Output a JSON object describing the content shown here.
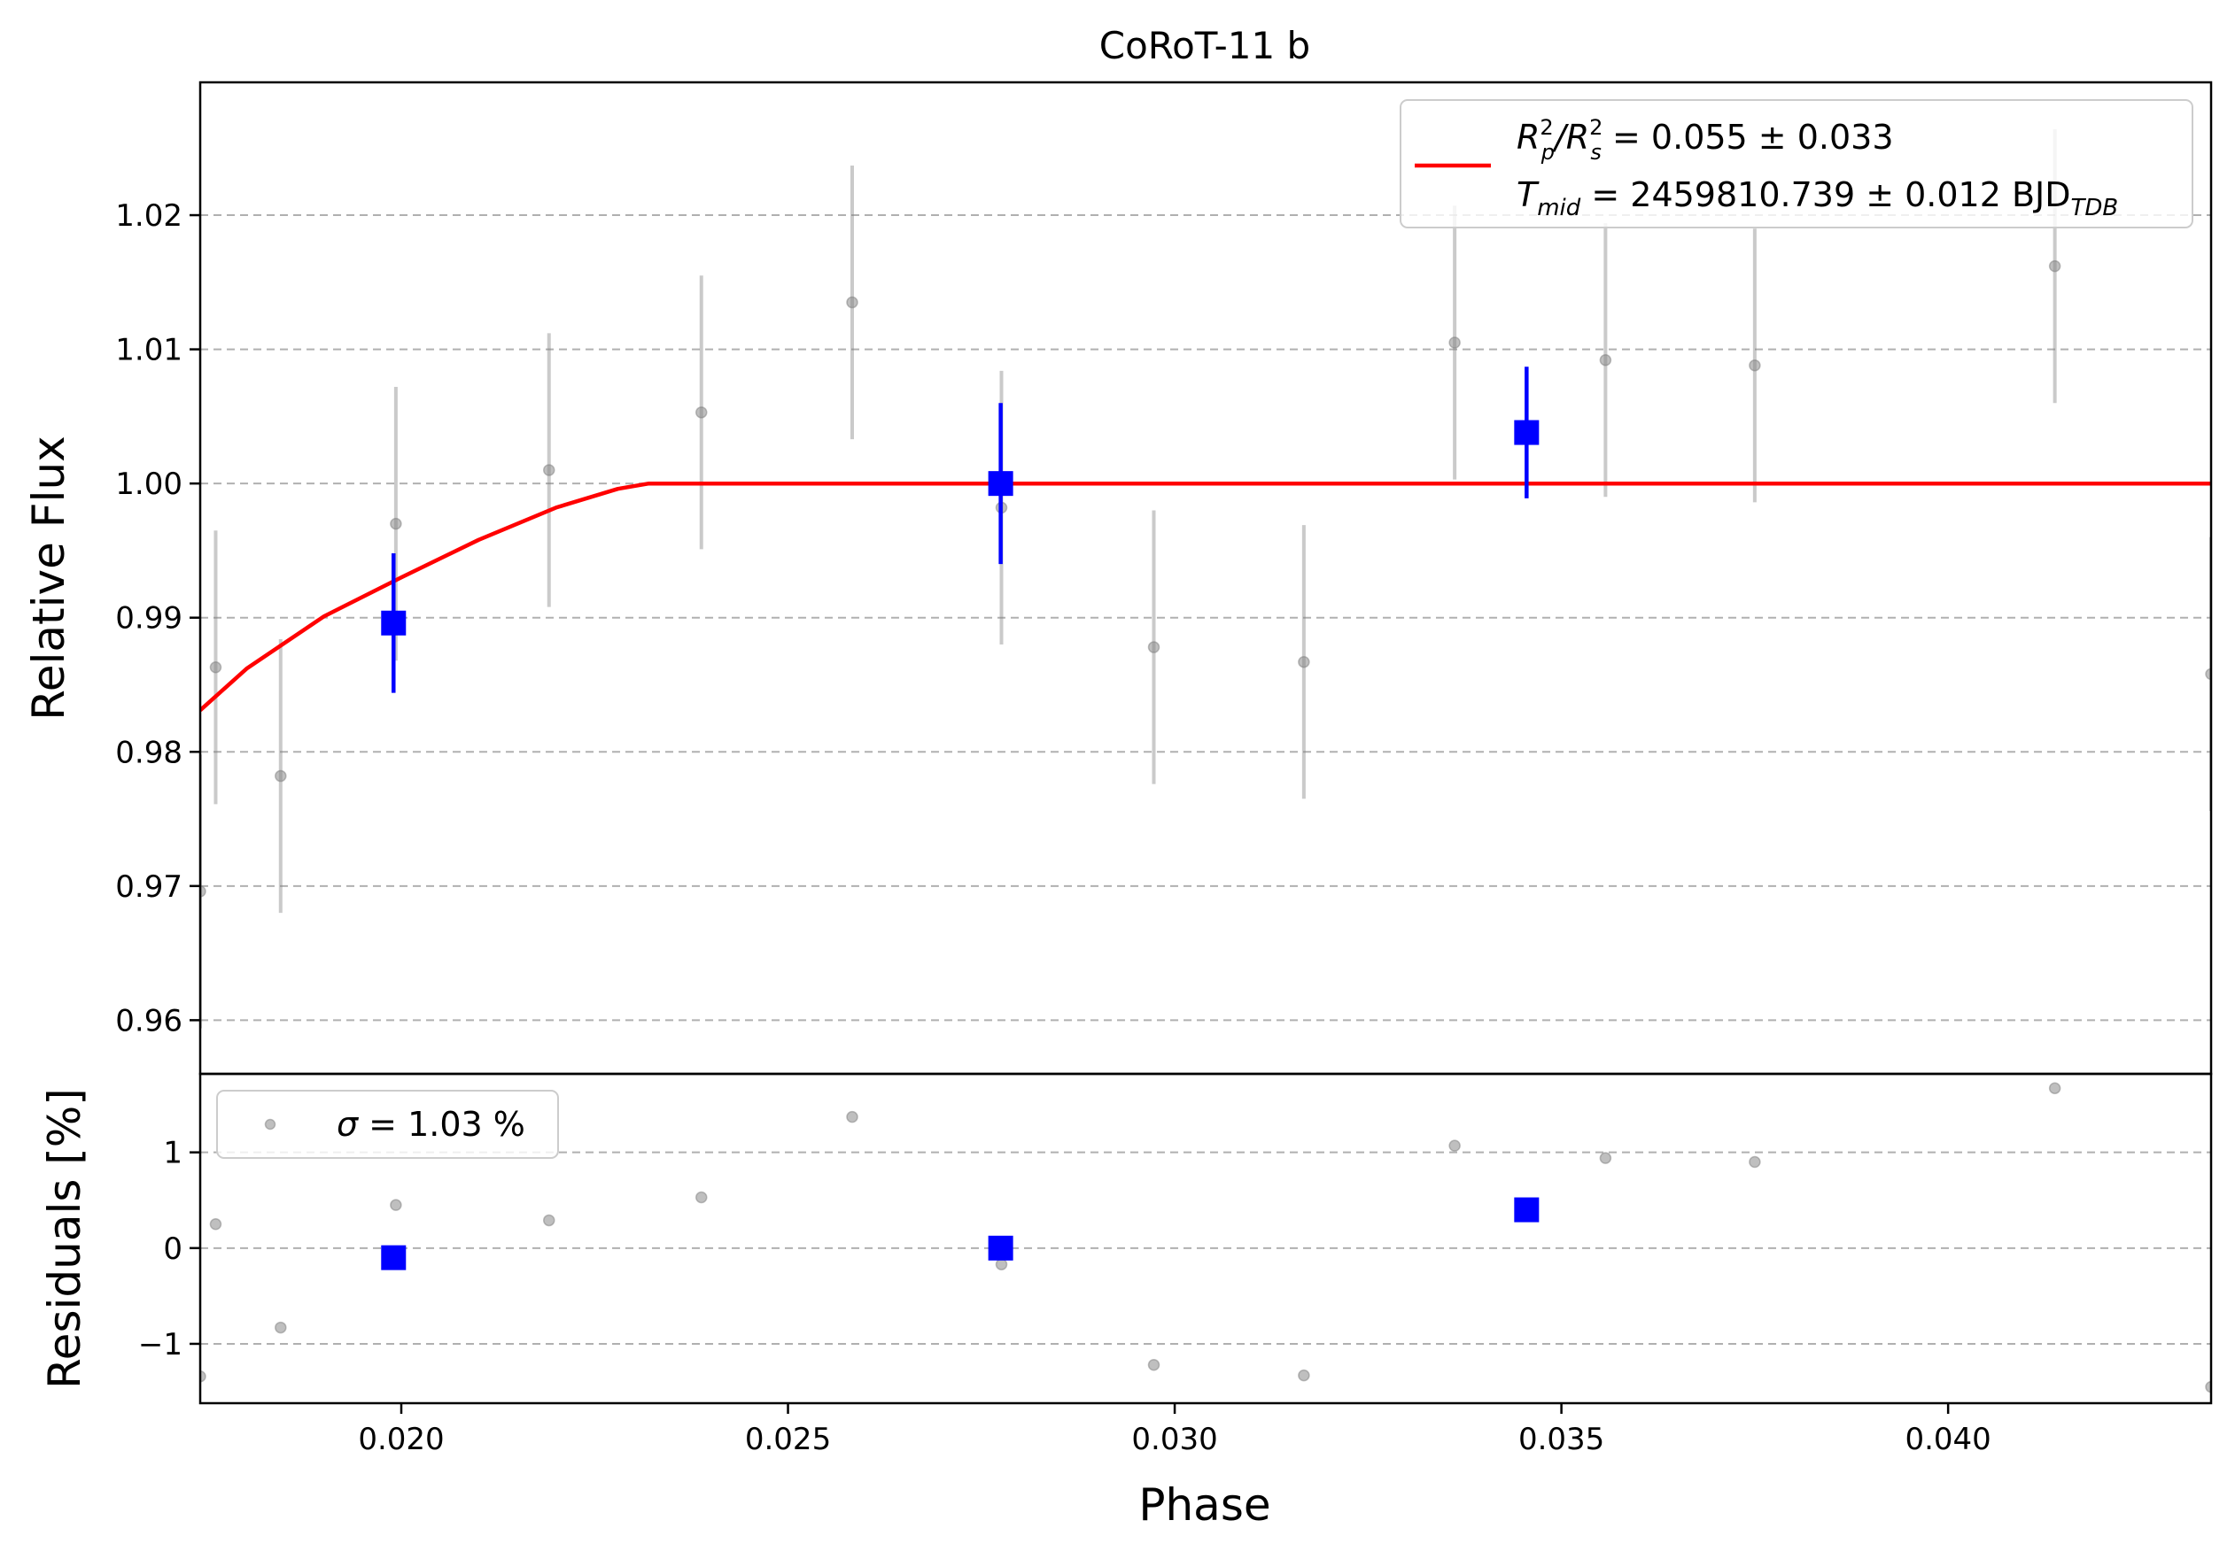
{
  "chart_data": [
    {
      "type": "scatter",
      "title": "CoRoT-11 b",
      "xlabel": "",
      "ylabel": "Relative Flux",
      "xlim": [
        0.0174,
        0.0434
      ],
      "ylim": [
        0.956,
        1.0299
      ],
      "yticks": [
        0.96,
        0.97,
        0.98,
        0.99,
        1.0,
        1.01,
        1.02
      ],
      "ytick_labels": [
        "0.96",
        "0.97",
        "0.98",
        "0.99",
        "1.00",
        "1.01",
        "1.02"
      ],
      "grid": "y-dashed",
      "legend": {
        "placement": "top-right",
        "line1_lhs": "R",
        "line1_sub1": "p",
        "line1_sup1": "2",
        "line1_mid": "/R",
        "line1_sub2": "s",
        "line1_sup2": "2",
        "line1_rhs": " = 0.055 ± 0.033",
        "line2_lhs": "T",
        "line2_sub": "mid",
        "line2_rhs": " = 2459810.739 ± 0.012 BJD",
        "line2_unit_sub": "TDB",
        "color": "#ff0000"
      },
      "series": [
        {
          "kind": "data",
          "color": "#808080",
          "x": [
            0.0174,
            0.0176,
            0.01844,
            0.01993,
            0.02191,
            0.02388,
            0.02583,
            0.02776,
            0.02973,
            0.03167,
            0.03362,
            0.03557,
            0.0375,
            0.04138,
            0.0434
          ],
          "y": [
            0.9696,
            0.9863,
            0.9782,
            0.997,
            1.001,
            1.0053,
            1.0135,
            0.9982,
            0.9878,
            0.9867,
            1.0105,
            1.0092,
            1.0088,
            1.0162,
            0.9858
          ],
          "yerr": [
            0.0102,
            0.0102,
            0.0102,
            0.0102,
            0.0102,
            0.0102,
            0.0102,
            0.0102,
            0.0102,
            0.0102,
            0.0102,
            0.0102,
            0.0102,
            0.0102,
            0.0102
          ]
        },
        {
          "kind": "binned",
          "color": "#0000ff",
          "x": [
            0.0199,
            0.02775,
            0.03455
          ],
          "y": [
            0.9896,
            1.0,
            1.0038
          ],
          "yerr": [
            0.0052,
            0.006,
            0.0049
          ]
        },
        {
          "kind": "model",
          "color": "#ff0000",
          "x": [
            0.0174,
            0.018,
            0.019,
            0.02,
            0.021,
            0.022,
            0.0228,
            0.0232,
            0.0434
          ],
          "y": [
            0.9831,
            0.9862,
            0.9901,
            0.993,
            0.9958,
            0.9982,
            0.9996,
            1.0,
            1.0
          ]
        }
      ]
    },
    {
      "type": "scatter",
      "title": "",
      "xlabel": "Phase",
      "ylabel": "Residuals [%]",
      "xlim": [
        0.0174,
        0.0434
      ],
      "ylim": [
        -1.62,
        1.82
      ],
      "xticks": [
        0.02,
        0.025,
        0.03,
        0.035,
        0.04
      ],
      "xtick_labels": [
        "0.020",
        "0.025",
        "0.030",
        "0.035",
        "0.040"
      ],
      "yticks": [
        -1,
        0,
        1
      ],
      "ytick_labels": [
        "−1",
        "0",
        "1"
      ],
      "grid": "y-dashed",
      "legend": {
        "placement": "top-left",
        "sigma": "σ",
        "text": " = 1.03 %"
      },
      "series": [
        {
          "kind": "data",
          "color": "#808080",
          "x": [
            0.0174,
            0.0176,
            0.01844,
            0.01993,
            0.02191,
            0.02388,
            0.02583,
            0.02776,
            0.02973,
            0.03167,
            0.03362,
            0.03557,
            0.0375,
            0.04138,
            0.0434
          ],
          "y": [
            -1.34,
            0.25,
            -0.83,
            0.45,
            0.29,
            0.53,
            1.37,
            -0.17,
            -1.22,
            -1.33,
            1.07,
            0.94,
            0.9,
            1.67,
            -1.45
          ]
        },
        {
          "kind": "binned",
          "color": "#0000ff",
          "x": [
            0.0199,
            0.02775,
            0.03455
          ],
          "y": [
            -0.1,
            0.0,
            0.4
          ]
        }
      ]
    }
  ]
}
